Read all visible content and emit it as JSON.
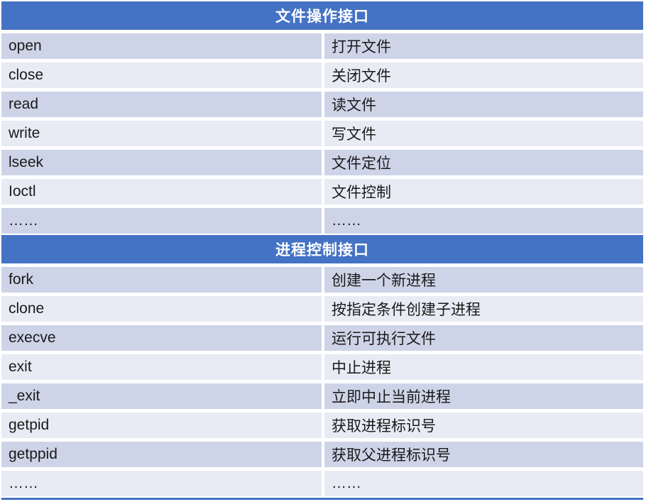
{
  "table": {
    "sections": [
      {
        "title": "文件操作接口",
        "rows": [
          {
            "api": "open",
            "desc": "打开文件"
          },
          {
            "api": "close",
            "desc": "关闭文件"
          },
          {
            "api": "read",
            "desc": "读文件"
          },
          {
            "api": "write",
            "desc": "写文件"
          },
          {
            "api": "lseek",
            "desc": "文件定位"
          },
          {
            "api": "Ioctl",
            "desc": "文件控制"
          },
          {
            "api": "……",
            "desc": "……"
          }
        ]
      },
      {
        "title": "进程控制接口",
        "rows": [
          {
            "api": "fork",
            "desc": "创建一个新进程"
          },
          {
            "api": "clone",
            "desc": "按指定条件创建子进程"
          },
          {
            "api": "execve",
            "desc": "运行可执行文件"
          },
          {
            "api": "exit",
            "desc": "中止进程"
          },
          {
            "api": "_exit",
            "desc": "立即中止当前进程"
          },
          {
            "api": "getpid",
            "desc": "获取进程标识号"
          },
          {
            "api": "getppid",
            "desc": "获取父进程标识号"
          },
          {
            "api": "……",
            "desc": "……"
          }
        ]
      }
    ]
  },
  "colors": {
    "header_bg": "#4472C4",
    "header_text": "#FFFFFF",
    "row_dark": "#CED4E8",
    "row_light": "#E9EBF4",
    "cell_text": "#1A1A1A",
    "bottom_rule": "#4472C4",
    "background": "#FFFFFF"
  }
}
